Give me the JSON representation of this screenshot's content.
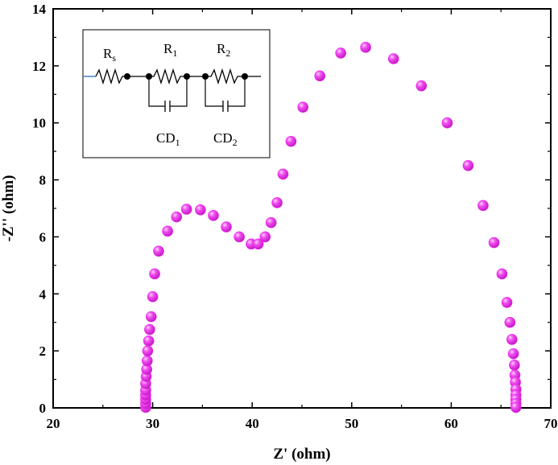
{
  "chart_data": {
    "type": "scatter",
    "xlabel": "Z' (ohm)",
    "ylabel": "-Z'' (ohm)",
    "xlim": [
      20,
      70
    ],
    "ylim": [
      0,
      14
    ],
    "x_ticks": [
      20,
      30,
      40,
      50,
      60,
      70
    ],
    "y_ticks": [
      0,
      2,
      4,
      6,
      8,
      10,
      12,
      14
    ],
    "marker_color": "#ee22ee",
    "grid": false,
    "inset": {
      "type": "equivalent-circuit",
      "elements": [
        {
          "main": "R",
          "sub": "s"
        },
        {
          "main": "R",
          "sub": "1"
        },
        {
          "main": "R",
          "sub": "2"
        },
        {
          "main": "CD",
          "sub": "1"
        },
        {
          "main": "CD",
          "sub": "2"
        }
      ]
    },
    "series": [
      {
        "x": [
          29.3,
          29.3,
          29.3,
          29.3,
          29.3,
          29.3,
          29.35,
          29.4,
          29.45,
          29.5,
          29.6,
          29.7,
          29.85,
          30.0,
          30.2,
          30.6,
          31.5,
          32.4,
          33.4,
          34.8,
          36.1,
          37.4,
          38.7,
          39.9,
          40.6,
          41.3,
          41.9,
          42.5,
          43.1,
          43.9,
          45.1,
          46.8,
          48.9,
          51.4,
          54.2,
          57.0,
          59.6,
          61.7,
          63.2,
          64.3,
          65.1,
          65.6,
          65.9,
          66.1,
          66.25,
          66.35,
          66.4,
          66.45,
          66.5,
          66.5,
          66.5,
          66.5,
          66.5
        ],
        "y": [
          0.02,
          0.15,
          0.3,
          0.45,
          0.62,
          0.85,
          1.1,
          1.35,
          1.65,
          2.0,
          2.35,
          2.75,
          3.2,
          3.9,
          4.7,
          5.5,
          6.2,
          6.7,
          6.97,
          6.95,
          6.75,
          6.35,
          6.0,
          5.75,
          5.75,
          6.0,
          6.5,
          7.2,
          8.2,
          9.35,
          10.55,
          11.65,
          12.45,
          12.65,
          12.25,
          11.3,
          10.0,
          8.5,
          7.1,
          5.8,
          4.7,
          3.7,
          3.0,
          2.4,
          1.9,
          1.5,
          1.15,
          0.9,
          0.65,
          0.45,
          0.3,
          0.15,
          0.02
        ]
      }
    ]
  }
}
